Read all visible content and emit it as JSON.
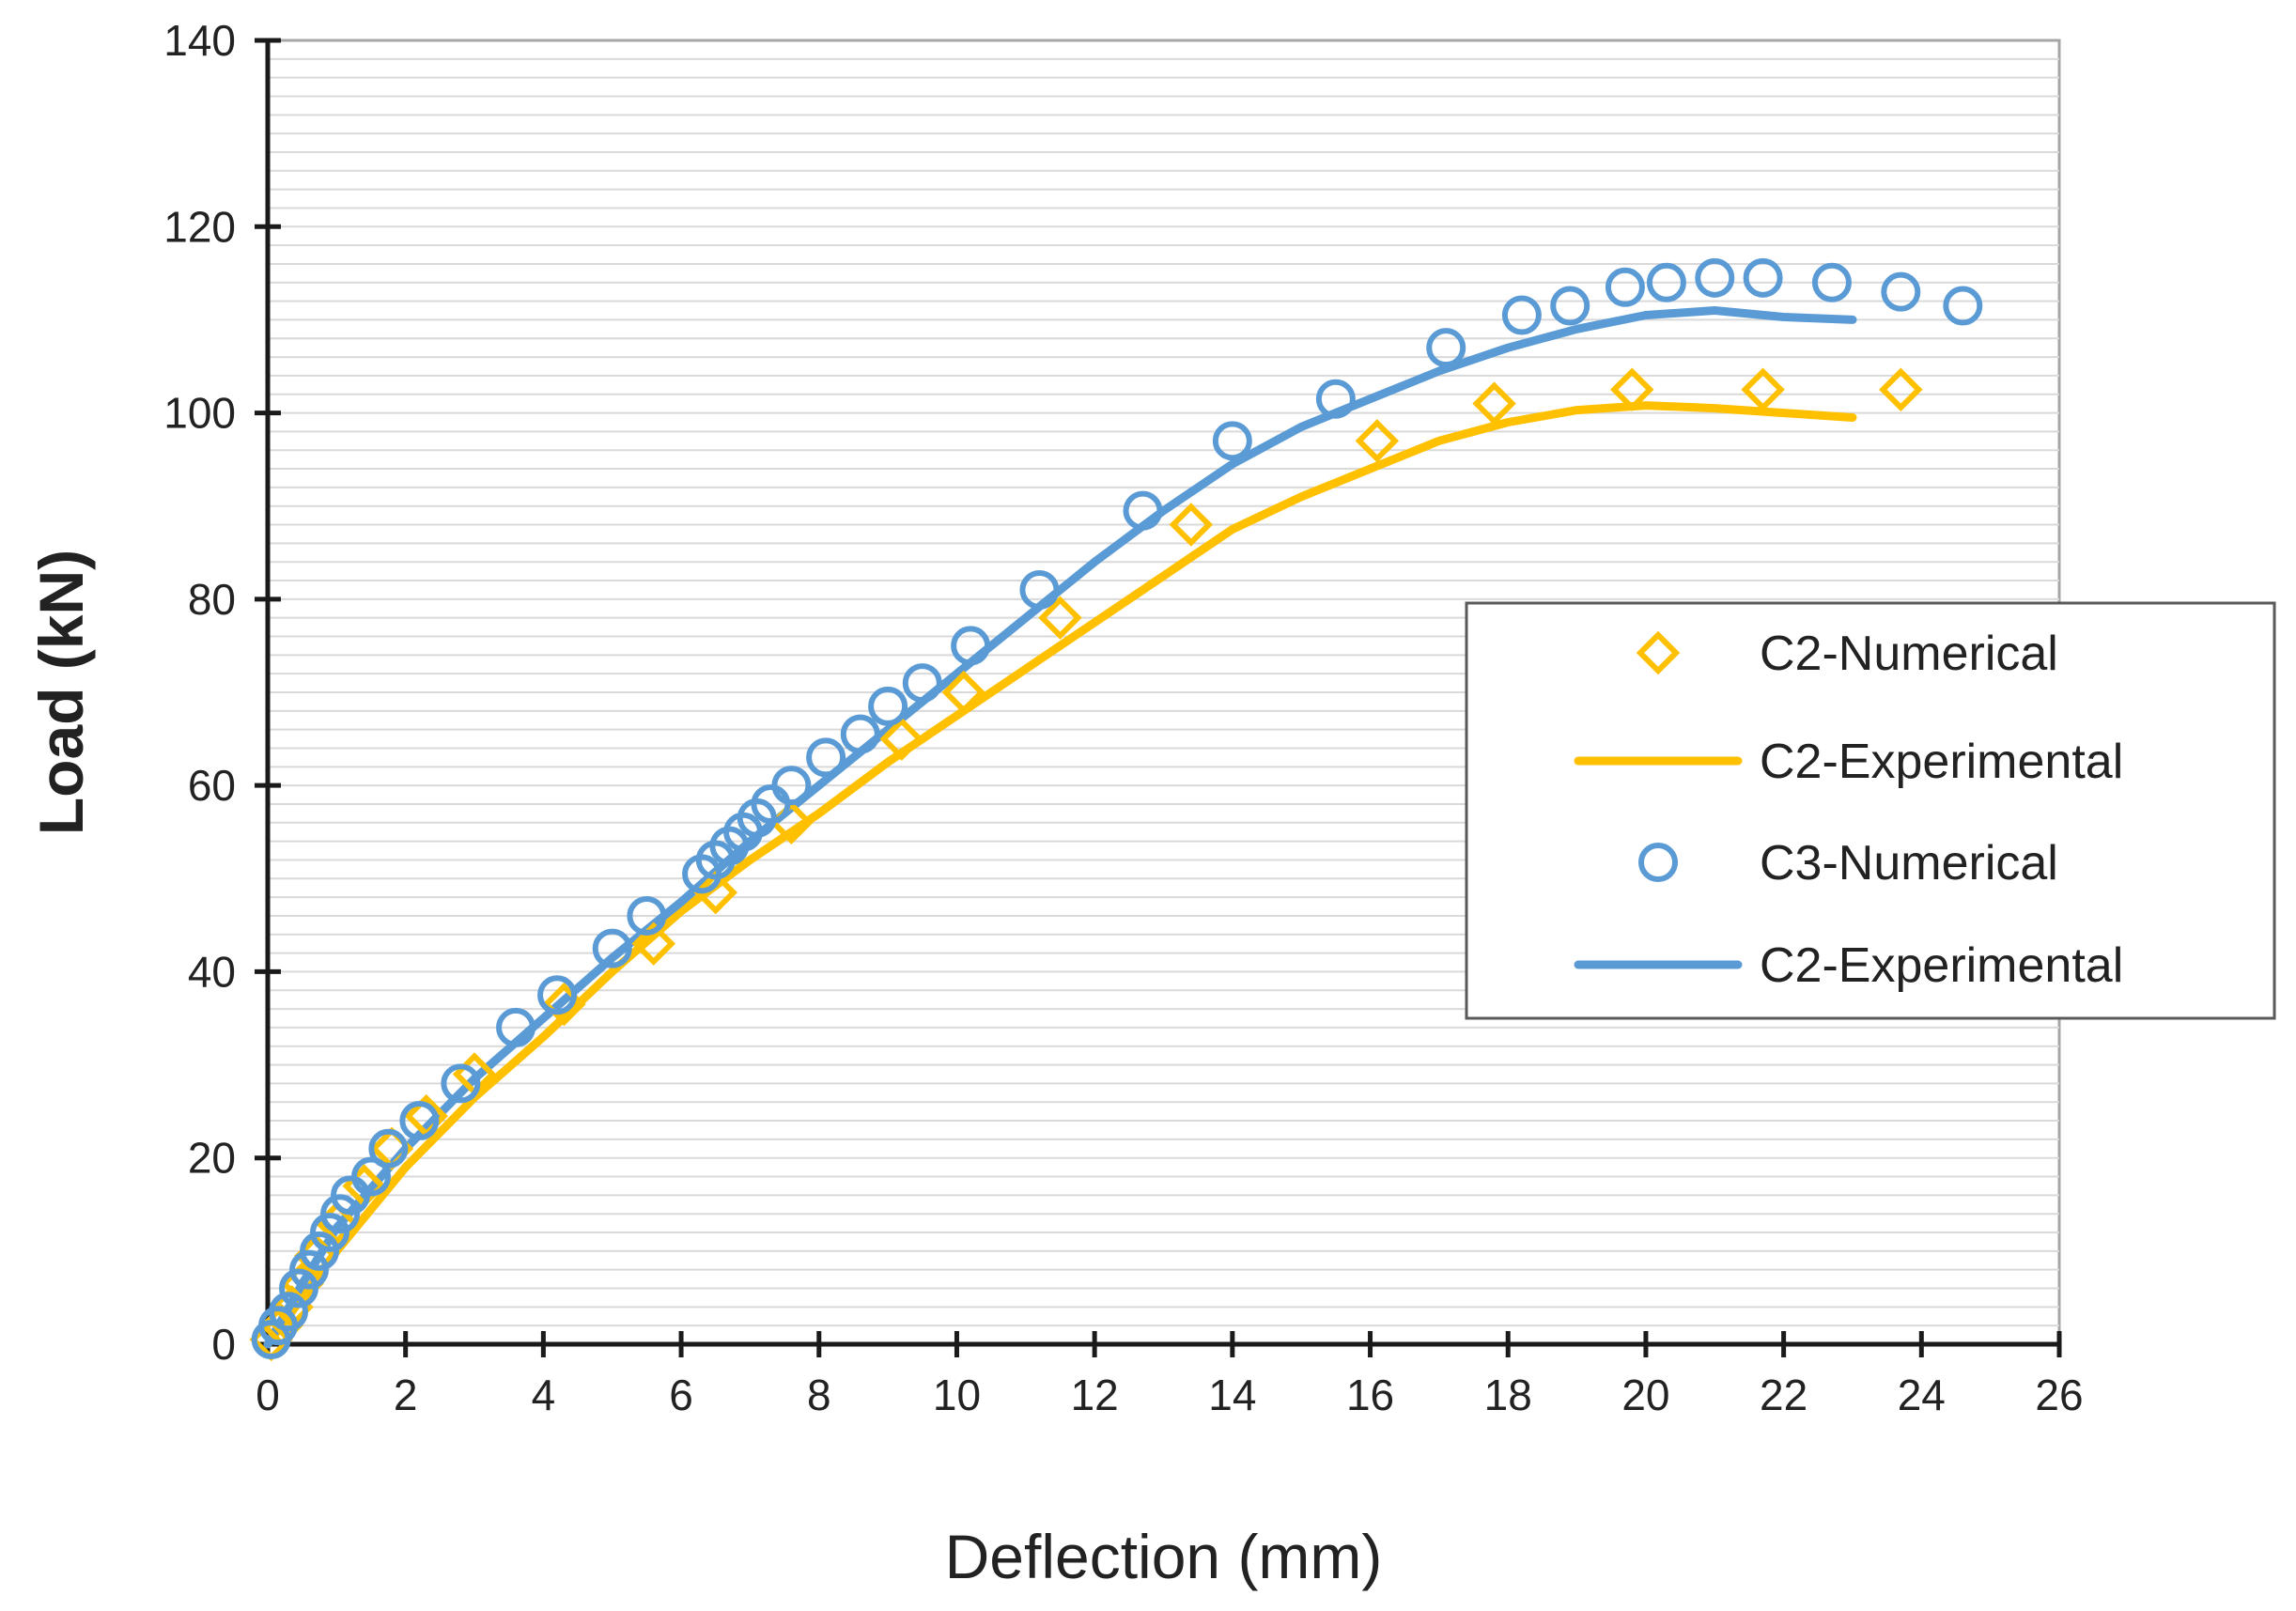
{
  "chart_data": {
    "type": "scatter",
    "xlabel": "Deflection (mm)",
    "ylabel": "Load (kN)",
    "xlim": [
      0,
      26
    ],
    "ylim": [
      0,
      140
    ],
    "x_ticks": [
      0,
      2,
      4,
      6,
      8,
      10,
      12,
      14,
      16,
      18,
      20,
      22,
      24,
      26
    ],
    "y_ticks": [
      0,
      20,
      40,
      60,
      80,
      100,
      120,
      140
    ],
    "grid": "horizontal minor every 2 kN",
    "legend_position": "right, inside plot area",
    "colors": {
      "orange": "#ffc000",
      "blue": "#5b9bd5"
    },
    "series": [
      {
        "name": "C2-Numerical",
        "style": "diamond-markers",
        "color": "#ffc000",
        "points": [
          [
            0.05,
            0.5
          ],
          [
            0.2,
            2
          ],
          [
            0.35,
            4
          ],
          [
            0.5,
            6.5
          ],
          [
            0.7,
            9.5
          ],
          [
            1.0,
            13
          ],
          [
            1.4,
            17
          ],
          [
            1.8,
            21
          ],
          [
            2.3,
            24.5
          ],
          [
            3.0,
            29
          ],
          [
            4.3,
            36.5
          ],
          [
            5.6,
            43
          ],
          [
            6.5,
            48.5
          ],
          [
            7.6,
            56
          ],
          [
            9.2,
            65
          ],
          [
            10.1,
            70
          ],
          [
            11.5,
            78
          ],
          [
            13.4,
            88
          ],
          [
            16.1,
            97
          ],
          [
            17.8,
            101
          ],
          [
            19.8,
            102.5
          ],
          [
            21.7,
            102.5
          ],
          [
            23.7,
            102.5
          ]
        ]
      },
      {
        "name": "C2-Experimental",
        "style": "line",
        "color": "#ffc000",
        "points": [
          [
            0,
            0
          ],
          [
            0.5,
            5
          ],
          [
            1,
            10
          ],
          [
            2,
            19
          ],
          [
            3,
            26.5
          ],
          [
            4,
            33
          ],
          [
            5,
            40
          ],
          [
            6,
            46.5
          ],
          [
            7,
            52
          ],
          [
            8,
            57
          ],
          [
            9,
            62.5
          ],
          [
            10,
            67.5
          ],
          [
            11,
            72.5
          ],
          [
            12,
            77.5
          ],
          [
            13,
            82.5
          ],
          [
            14,
            87.5
          ],
          [
            15,
            91
          ],
          [
            16,
            94
          ],
          [
            17,
            97
          ],
          [
            18,
            99
          ],
          [
            19,
            100.3
          ],
          [
            20,
            100.8
          ],
          [
            21,
            100.5
          ],
          [
            22,
            100
          ],
          [
            23,
            99.5
          ]
        ]
      },
      {
        "name": "C3-Numerical",
        "style": "circle-markers",
        "color": "#5b9bd5",
        "points": [
          [
            0.05,
            0.5
          ],
          [
            0.15,
            2
          ],
          [
            0.3,
            3.5
          ],
          [
            0.45,
            6
          ],
          [
            0.6,
            8
          ],
          [
            0.75,
            10
          ],
          [
            0.9,
            12
          ],
          [
            1.05,
            14
          ],
          [
            1.2,
            16
          ],
          [
            1.5,
            18
          ],
          [
            1.75,
            21
          ],
          [
            2.2,
            24
          ],
          [
            2.8,
            28
          ],
          [
            3.6,
            34
          ],
          [
            4.2,
            37.5
          ],
          [
            5.0,
            42.5
          ],
          [
            5.5,
            46
          ],
          [
            6.3,
            50.5
          ],
          [
            6.5,
            52
          ],
          [
            6.7,
            53.5
          ],
          [
            6.9,
            55
          ],
          [
            7.1,
            56.5
          ],
          [
            7.3,
            58
          ],
          [
            7.6,
            60
          ],
          [
            8.1,
            63
          ],
          [
            8.6,
            65.5
          ],
          [
            9.0,
            68.5
          ],
          [
            9.5,
            71
          ],
          [
            10.2,
            75
          ],
          [
            11.2,
            81
          ],
          [
            12.7,
            89.5
          ],
          [
            14.0,
            97
          ],
          [
            15.5,
            101.5
          ],
          [
            17.1,
            107
          ],
          [
            18.2,
            110.5
          ],
          [
            18.9,
            111.5
          ],
          [
            19.7,
            113.5
          ],
          [
            20.3,
            114
          ],
          [
            21.0,
            114.5
          ],
          [
            21.7,
            114.5
          ],
          [
            22.7,
            114
          ],
          [
            23.7,
            113
          ],
          [
            24.6,
            111.5
          ]
        ]
      },
      {
        "name": "C2-Experimental",
        "style": "line",
        "color": "#5b9bd5",
        "points": [
          [
            0,
            0
          ],
          [
            0.5,
            6.5
          ],
          [
            1,
            12.5
          ],
          [
            2,
            21
          ],
          [
            3,
            28.5
          ],
          [
            4,
            35
          ],
          [
            5,
            41.5
          ],
          [
            6,
            47.5
          ],
          [
            7,
            54
          ],
          [
            8,
            60
          ],
          [
            9,
            66
          ],
          [
            10,
            72
          ],
          [
            11,
            78
          ],
          [
            12,
            84
          ],
          [
            13,
            89.5
          ],
          [
            14,
            94.5
          ],
          [
            15,
            98.5
          ],
          [
            16,
            101.5
          ],
          [
            17,
            104.5
          ],
          [
            18,
            107
          ],
          [
            19,
            109
          ],
          [
            20,
            110.5
          ],
          [
            21,
            111
          ],
          [
            22,
            110.3
          ],
          [
            23,
            110
          ]
        ]
      }
    ]
  }
}
